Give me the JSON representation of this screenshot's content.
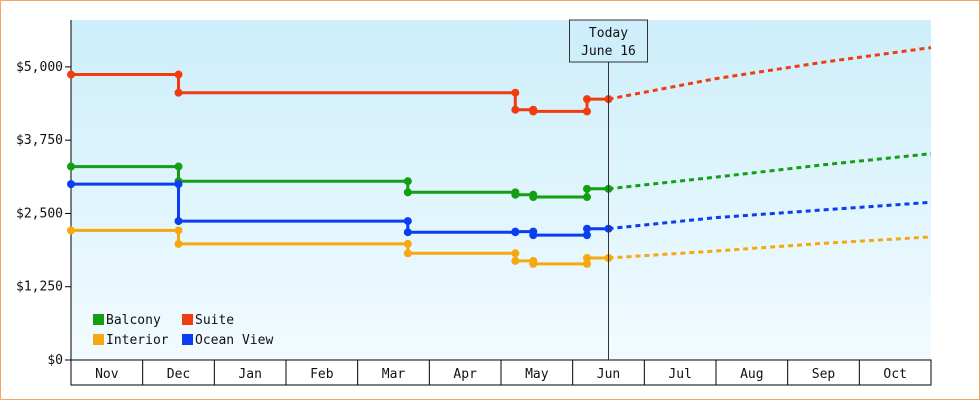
{
  "chart_data": {
    "type": "line",
    "title": "",
    "xlabel": "",
    "ylabel": "",
    "y_tick_labels": [
      "$0",
      "$1,250",
      "$2,500",
      "$3,750",
      "$5,000"
    ],
    "y_ticks": [
      0,
      1250,
      2500,
      3750,
      5000
    ],
    "ylim": [
      0,
      5800
    ],
    "x_months": [
      "Nov",
      "Dec",
      "Jan",
      "Feb",
      "Mar",
      "Apr",
      "May",
      "Jun",
      "Jul",
      "Aug",
      "Sep",
      "Oct"
    ],
    "xlim": [
      0,
      12
    ],
    "grid": false,
    "legend": "bottom-left",
    "today": {
      "line1": "Today",
      "line2": "June 16",
      "x": 7.5
    },
    "series": [
      {
        "name": "Balcony",
        "color": "#12a012",
        "points": [
          [
            0,
            3300
          ],
          [
            1.5,
            3300
          ],
          [
            1.5,
            3050
          ],
          [
            4.7,
            3050
          ],
          [
            4.7,
            2860
          ],
          [
            6.2,
            2860
          ],
          [
            6.2,
            2820
          ],
          [
            6.45,
            2820
          ],
          [
            6.45,
            2780
          ],
          [
            7.2,
            2780
          ],
          [
            7.2,
            2920
          ],
          [
            7.5,
            2920
          ]
        ],
        "forecast": [
          [
            7.5,
            2920
          ],
          [
            9.0,
            3120
          ],
          [
            10.5,
            3330
          ],
          [
            12,
            3520
          ]
        ]
      },
      {
        "name": "Suite",
        "color": "#f03c10",
        "points": [
          [
            0,
            4870
          ],
          [
            1.5,
            4870
          ],
          [
            1.5,
            4560
          ],
          [
            6.2,
            4560
          ],
          [
            6.2,
            4270
          ],
          [
            6.45,
            4270
          ],
          [
            6.45,
            4240
          ],
          [
            7.2,
            4240
          ],
          [
            7.2,
            4450
          ],
          [
            7.5,
            4450
          ]
        ],
        "forecast": [
          [
            7.5,
            4450
          ],
          [
            9.0,
            4800
          ],
          [
            10.5,
            5080
          ],
          [
            12,
            5330
          ]
        ]
      },
      {
        "name": "Interior",
        "color": "#f5a810",
        "points": [
          [
            0,
            2210
          ],
          [
            1.5,
            2210
          ],
          [
            1.5,
            1980
          ],
          [
            4.7,
            1980
          ],
          [
            4.7,
            1820
          ],
          [
            6.2,
            1820
          ],
          [
            6.2,
            1690
          ],
          [
            6.45,
            1690
          ],
          [
            6.45,
            1640
          ],
          [
            7.2,
            1640
          ],
          [
            7.2,
            1740
          ],
          [
            7.5,
            1740
          ]
        ],
        "forecast": [
          [
            7.5,
            1740
          ],
          [
            9.0,
            1860
          ],
          [
            10.5,
            1990
          ],
          [
            12,
            2100
          ]
        ]
      },
      {
        "name": "Ocean View",
        "color": "#0a3ef0",
        "points": [
          [
            0,
            3000
          ],
          [
            1.5,
            3000
          ],
          [
            1.5,
            2370
          ],
          [
            4.7,
            2370
          ],
          [
            4.7,
            2180
          ],
          [
            6.2,
            2180
          ],
          [
            6.2,
            2190
          ],
          [
            6.45,
            2190
          ],
          [
            6.45,
            2130
          ],
          [
            7.2,
            2130
          ],
          [
            7.2,
            2240
          ],
          [
            7.5,
            2240
          ]
        ],
        "forecast": [
          [
            7.5,
            2240
          ],
          [
            9.0,
            2430
          ],
          [
            10.5,
            2560
          ],
          [
            12,
            2690
          ]
        ]
      }
    ]
  }
}
